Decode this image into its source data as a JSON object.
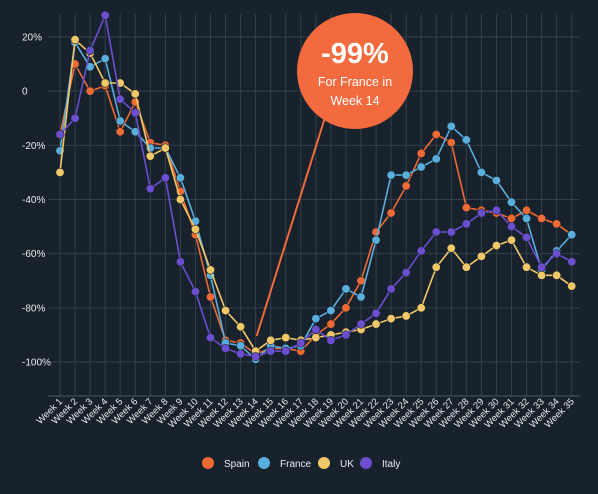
{
  "chart_data": {
    "type": "line",
    "categories": [
      "Week 1",
      "Week 2",
      "Week 3",
      "Week 4",
      "Week 5",
      "Week 6",
      "Week 7",
      "Week 8",
      "Week 9",
      "Week 10",
      "Week 11",
      "Week 12",
      "Week 13",
      "Week 14",
      "Week 15",
      "Week 16",
      "Week 17",
      "Week 18",
      "Week 19",
      "Week 20",
      "Week 21",
      "Week 22",
      "Week 23",
      "Week 24",
      "Week 25",
      "Week 26",
      "Week 27",
      "Week 28",
      "Week 29",
      "Week 30",
      "Week 31",
      "Week 32",
      "Week 33",
      "Week 34",
      "Week 35"
    ],
    "yticks": [
      20,
      0,
      -20,
      -40,
      -60,
      -80,
      -100
    ],
    "ytick_labels": [
      "20%",
      "0",
      "-20%",
      "-40%",
      "-60%",
      "-80%",
      "-100%"
    ],
    "ylim": [
      -104,
      27
    ],
    "grid": true,
    "legend_position": "bottom",
    "series": [
      {
        "name": "Spain",
        "color": "#ef6a35",
        "values": [
          -16,
          10,
          0,
          2,
          -15,
          -4,
          -19,
          -20,
          -37,
          -53,
          -76,
          -92,
          -93,
          -97,
          -95,
          -95,
          -96,
          -90,
          -86,
          -80,
          -70,
          -52,
          -45,
          -35,
          -23,
          -16,
          -19,
          -43,
          -44,
          -45,
          -47,
          -44,
          -47,
          -49,
          -53
        ]
      },
      {
        "name": "France",
        "color": "#5aaedc",
        "values": [
          -22,
          18,
          9,
          12,
          -11,
          -15,
          -21,
          -21,
          -32,
          -48,
          -68,
          -93,
          -94,
          -99,
          -94,
          -95,
          -94,
          -84,
          -81,
          -73,
          -76,
          -55,
          -31,
          -31,
          -28,
          -25,
          -13,
          -18,
          -30,
          -33,
          -41,
          -47,
          -66,
          -59,
          -53
        ]
      },
      {
        "name": "UK",
        "color": "#f2c768",
        "values": [
          -30,
          19,
          14,
          3,
          3,
          -1,
          -24,
          -21,
          -40,
          -51,
          -66,
          -81,
          -87,
          -96,
          -92,
          -91,
          -92,
          -91,
          -90,
          -89,
          -88,
          -86,
          -84,
          -83,
          -80,
          -65,
          -58,
          -65,
          -61,
          -57,
          -55,
          -65,
          -68,
          -68,
          -72
        ]
      },
      {
        "name": "Italy",
        "color": "#6b4fcf",
        "values": [
          -16,
          -10,
          15,
          28,
          -3,
          -8,
          -36,
          -32,
          -63,
          -74,
          -91,
          -95,
          -97,
          -98,
          -96,
          -96,
          -93,
          -88,
          -92,
          -90,
          -86,
          -82,
          -73,
          -67,
          -59,
          -52,
          -52,
          -49,
          -45,
          -44,
          -50,
          -54,
          -65,
          -60,
          -63
        ]
      }
    ],
    "callout": {
      "value": "-99%",
      "text_line1": "For France in",
      "text_line2": "Week 14",
      "series": "France",
      "week_index": 13,
      "color": "#f26a3d"
    }
  }
}
